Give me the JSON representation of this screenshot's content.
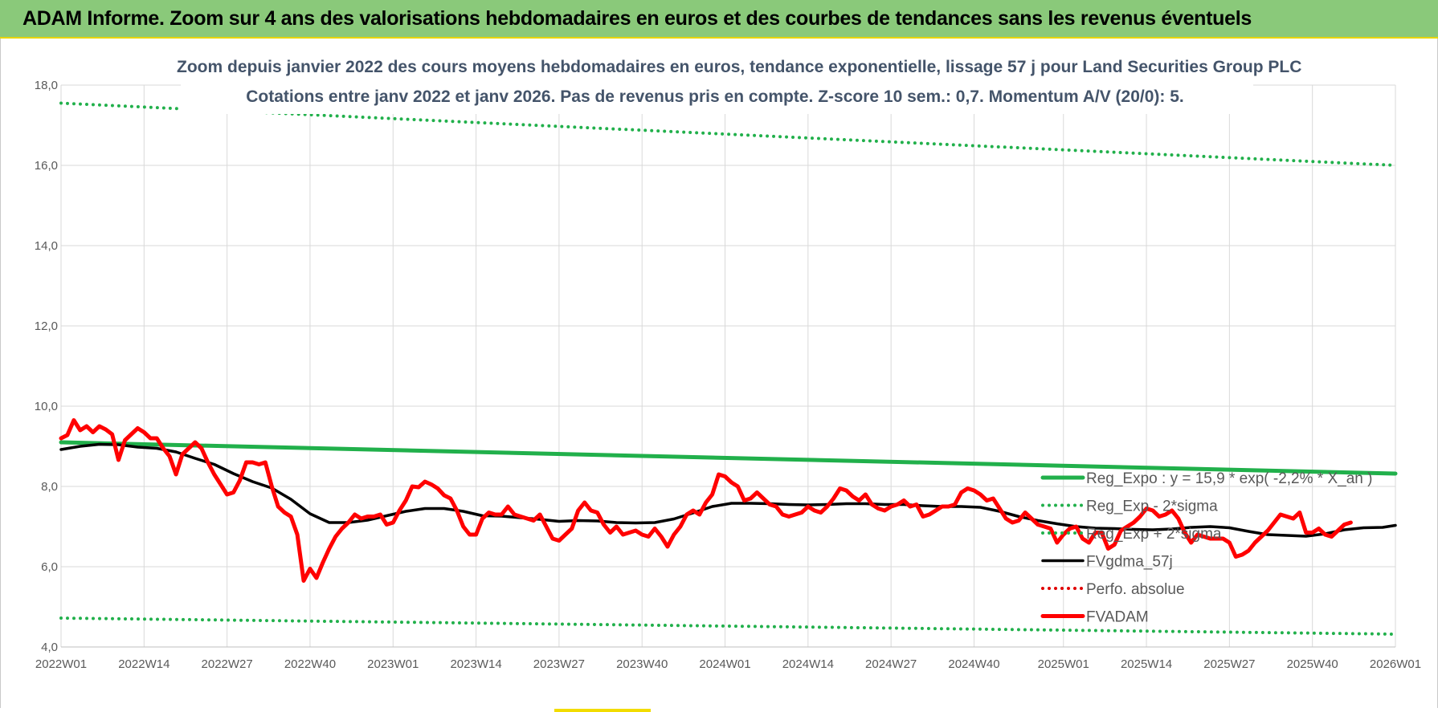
{
  "header": {
    "title": "ADAM Informe. Zoom sur 4 ans des valorisations hebdomadaires en euros et des courbes de tendances sans les revenus éventuels"
  },
  "chart_data": {
    "type": "line",
    "title": "Zoom depuis janvier 2022 des cours moyens hebdomadaires en euros, tendance exponentielle, lissage 57 j pour Land Securities Group PLC",
    "subtitle": "Cotations entre janv 2022 et janv 2026. Pas de revenus pris en compte. Z-score 10 sem.: 0,7. Momentum A/V (20/0): 5.",
    "xlabel": "",
    "ylabel": "",
    "ylim": [
      4,
      18
    ],
    "yticks": [
      "4,0",
      "6,0",
      "8,0",
      "10,0",
      "12,0",
      "14,0",
      "16,0",
      "18,0"
    ],
    "yticks_values": [
      4,
      6,
      8,
      10,
      12,
      14,
      16,
      18
    ],
    "x_start_week": 0,
    "x_end_week": 209,
    "xticks": [
      {
        "label": "2022W01",
        "week": 0
      },
      {
        "label": "2022W14",
        "week": 13
      },
      {
        "label": "2022W27",
        "week": 26
      },
      {
        "label": "2022W40",
        "week": 39
      },
      {
        "label": "2023W01",
        "week": 52
      },
      {
        "label": "2023W14",
        "week": 65
      },
      {
        "label": "2023W27",
        "week": 78
      },
      {
        "label": "2023W40",
        "week": 91
      },
      {
        "label": "2024W01",
        "week": 104
      },
      {
        "label": "2024W14",
        "week": 117
      },
      {
        "label": "2024W27",
        "week": 130
      },
      {
        "label": "2024W40",
        "week": 143
      },
      {
        "label": "2025W01",
        "week": 157
      },
      {
        "label": "2025W14",
        "week": 170
      },
      {
        "label": "2025W27",
        "week": 183
      },
      {
        "label": "2025W40",
        "week": 196
      },
      {
        "label": "2026W01",
        "week": 209
      }
    ],
    "grid": true,
    "legend_position": "bottom-right",
    "series": [
      {
        "name": "Reg_Expo : y = 15,9 * exp( -2,2% * X_an )",
        "style": "solid-thick",
        "color": "#21b04b",
        "points": [
          [
            0,
            9.1
          ],
          [
            209,
            8.32
          ]
        ]
      },
      {
        "name": "Reg_Exp - 2*sigma",
        "style": "dotted",
        "color": "#21b04b",
        "points": [
          [
            0,
            4.72
          ],
          [
            209,
            4.32
          ]
        ]
      },
      {
        "name": "Reg_Exp + 2*sigma",
        "style": "dotted",
        "color": "#21b04b",
        "points": [
          [
            0,
            17.55
          ],
          [
            209,
            16.0
          ]
        ]
      },
      {
        "name": "FVgdma_57j",
        "style": "solid",
        "color": "#000000",
        "points": [
          [
            0,
            8.92
          ],
          [
            3,
            9.0
          ],
          [
            6,
            9.05
          ],
          [
            9,
            9.04
          ],
          [
            12,
            8.98
          ],
          [
            15,
            8.95
          ],
          [
            18,
            8.86
          ],
          [
            21,
            8.7
          ],
          [
            24,
            8.55
          ],
          [
            27,
            8.32
          ],
          [
            30,
            8.12
          ],
          [
            33,
            7.96
          ],
          [
            36,
            7.68
          ],
          [
            39,
            7.32
          ],
          [
            42,
            7.1
          ],
          [
            45,
            7.1
          ],
          [
            48,
            7.16
          ],
          [
            51,
            7.27
          ],
          [
            54,
            7.38
          ],
          [
            57,
            7.45
          ],
          [
            60,
            7.45
          ],
          [
            63,
            7.38
          ],
          [
            66,
            7.27
          ],
          [
            69,
            7.26
          ],
          [
            72,
            7.22
          ],
          [
            75,
            7.18
          ],
          [
            78,
            7.13
          ],
          [
            81,
            7.15
          ],
          [
            84,
            7.14
          ],
          [
            87,
            7.1
          ],
          [
            90,
            7.09
          ],
          [
            93,
            7.1
          ],
          [
            96,
            7.19
          ],
          [
            99,
            7.34
          ],
          [
            102,
            7.5
          ],
          [
            105,
            7.58
          ],
          [
            108,
            7.58
          ],
          [
            111,
            7.57
          ],
          [
            114,
            7.55
          ],
          [
            117,
            7.54
          ],
          [
            120,
            7.55
          ],
          [
            123,
            7.57
          ],
          [
            126,
            7.57
          ],
          [
            129,
            7.55
          ],
          [
            132,
            7.55
          ],
          [
            135,
            7.52
          ],
          [
            138,
            7.5
          ],
          [
            141,
            7.5
          ],
          [
            144,
            7.48
          ],
          [
            147,
            7.38
          ],
          [
            150,
            7.25
          ],
          [
            153,
            7.15
          ],
          [
            156,
            7.07
          ],
          [
            159,
            7.0
          ],
          [
            162,
            6.96
          ],
          [
            165,
            6.95
          ],
          [
            168,
            6.93
          ],
          [
            171,
            6.92
          ],
          [
            174,
            6.94
          ],
          [
            177,
            6.98
          ],
          [
            180,
            7.0
          ],
          [
            183,
            6.97
          ],
          [
            186,
            6.88
          ],
          [
            189,
            6.8
          ],
          [
            192,
            6.78
          ],
          [
            195,
            6.76
          ],
          [
            198,
            6.82
          ],
          [
            201,
            6.92
          ],
          [
            204,
            6.97
          ],
          [
            207,
            6.98
          ],
          [
            209,
            7.03
          ]
        ]
      },
      {
        "name": "Perfo. absolue",
        "style": "dotted",
        "color": "#e00000",
        "points": []
      },
      {
        "name": "FVADAM",
        "style": "solid-thick",
        "color": "#ff0000",
        "points": [
          [
            0,
            9.2
          ],
          [
            1,
            9.28
          ],
          [
            2,
            9.65
          ],
          [
            3,
            9.4
          ],
          [
            4,
            9.5
          ],
          [
            5,
            9.35
          ],
          [
            6,
            9.5
          ],
          [
            7,
            9.42
          ],
          [
            8,
            9.3
          ],
          [
            9,
            8.66
          ],
          [
            10,
            9.15
          ],
          [
            11,
            9.3
          ],
          [
            12,
            9.45
          ],
          [
            13,
            9.35
          ],
          [
            14,
            9.2
          ],
          [
            15,
            9.2
          ],
          [
            16,
            8.95
          ],
          [
            17,
            8.75
          ],
          [
            18,
            8.3
          ],
          [
            19,
            8.8
          ],
          [
            20,
            8.95
          ],
          [
            21,
            9.1
          ],
          [
            22,
            8.95
          ],
          [
            23,
            8.6
          ],
          [
            24,
            8.3
          ],
          [
            25,
            8.05
          ],
          [
            26,
            7.8
          ],
          [
            27,
            7.85
          ],
          [
            28,
            8.15
          ],
          [
            29,
            8.6
          ],
          [
            30,
            8.6
          ],
          [
            31,
            8.55
          ],
          [
            32,
            8.6
          ],
          [
            33,
            8.0
          ],
          [
            34,
            7.5
          ],
          [
            35,
            7.35
          ],
          [
            36,
            7.25
          ],
          [
            37,
            6.8
          ],
          [
            38,
            5.65
          ],
          [
            39,
            5.95
          ],
          [
            40,
            5.72
          ],
          [
            41,
            6.1
          ],
          [
            42,
            6.45
          ],
          [
            43,
            6.75
          ],
          [
            44,
            6.95
          ],
          [
            45,
            7.1
          ],
          [
            46,
            7.3
          ],
          [
            47,
            7.2
          ],
          [
            48,
            7.25
          ],
          [
            49,
            7.25
          ],
          [
            50,
            7.3
          ],
          [
            51,
            7.05
          ],
          [
            52,
            7.1
          ],
          [
            53,
            7.4
          ],
          [
            54,
            7.65
          ],
          [
            55,
            8.0
          ],
          [
            56,
            7.98
          ],
          [
            57,
            8.12
          ],
          [
            58,
            8.05
          ],
          [
            59,
            7.95
          ],
          [
            60,
            7.78
          ],
          [
            61,
            7.7
          ],
          [
            62,
            7.4
          ],
          [
            63,
            7.0
          ],
          [
            64,
            6.8
          ],
          [
            65,
            6.8
          ],
          [
            66,
            7.2
          ],
          [
            67,
            7.35
          ],
          [
            68,
            7.3
          ],
          [
            69,
            7.3
          ],
          [
            70,
            7.5
          ],
          [
            71,
            7.3
          ],
          [
            72,
            7.25
          ],
          [
            73,
            7.2
          ],
          [
            74,
            7.15
          ],
          [
            75,
            7.3
          ],
          [
            76,
            7.0
          ],
          [
            77,
            6.7
          ],
          [
            78,
            6.65
          ],
          [
            79,
            6.8
          ],
          [
            80,
            6.95
          ],
          [
            81,
            7.4
          ],
          [
            82,
            7.6
          ],
          [
            83,
            7.4
          ],
          [
            84,
            7.35
          ],
          [
            85,
            7.05
          ],
          [
            86,
            6.85
          ],
          [
            87,
            7.0
          ],
          [
            88,
            6.8
          ],
          [
            89,
            6.85
          ],
          [
            90,
            6.9
          ],
          [
            91,
            6.8
          ],
          [
            92,
            6.75
          ],
          [
            93,
            6.95
          ],
          [
            94,
            6.75
          ],
          [
            95,
            6.5
          ],
          [
            96,
            6.8
          ],
          [
            97,
            7.0
          ],
          [
            98,
            7.3
          ],
          [
            99,
            7.4
          ],
          [
            100,
            7.3
          ],
          [
            101,
            7.6
          ],
          [
            102,
            7.8
          ],
          [
            103,
            8.3
          ],
          [
            104,
            8.25
          ],
          [
            105,
            8.1
          ],
          [
            106,
            8.0
          ],
          [
            107,
            7.65
          ],
          [
            108,
            7.7
          ],
          [
            109,
            7.85
          ],
          [
            110,
            7.7
          ],
          [
            111,
            7.55
          ],
          [
            112,
            7.5
          ],
          [
            113,
            7.3
          ],
          [
            114,
            7.25
          ],
          [
            115,
            7.3
          ],
          [
            116,
            7.35
          ],
          [
            117,
            7.5
          ],
          [
            118,
            7.4
          ],
          [
            119,
            7.35
          ],
          [
            120,
            7.5
          ],
          [
            121,
            7.7
          ],
          [
            122,
            7.95
          ],
          [
            123,
            7.9
          ],
          [
            124,
            7.75
          ],
          [
            125,
            7.65
          ],
          [
            126,
            7.8
          ],
          [
            127,
            7.55
          ],
          [
            128,
            7.45
          ],
          [
            129,
            7.4
          ],
          [
            130,
            7.5
          ],
          [
            131,
            7.55
          ],
          [
            132,
            7.65
          ],
          [
            133,
            7.5
          ],
          [
            134,
            7.55
          ],
          [
            135,
            7.25
          ],
          [
            136,
            7.3
          ],
          [
            137,
            7.4
          ],
          [
            138,
            7.5
          ],
          [
            139,
            7.5
          ],
          [
            140,
            7.55
          ],
          [
            141,
            7.85
          ],
          [
            142,
            7.95
          ],
          [
            143,
            7.9
          ],
          [
            144,
            7.8
          ],
          [
            145,
            7.65
          ],
          [
            146,
            7.7
          ],
          [
            147,
            7.45
          ],
          [
            148,
            7.2
          ],
          [
            149,
            7.1
          ],
          [
            150,
            7.15
          ],
          [
            151,
            7.35
          ],
          [
            152,
            7.2
          ],
          [
            153,
            7.05
          ],
          [
            154,
            7.0
          ],
          [
            155,
            6.95
          ],
          [
            156,
            6.6
          ],
          [
            157,
            6.8
          ],
          [
            158,
            6.95
          ],
          [
            159,
            7.0
          ],
          [
            160,
            6.7
          ],
          [
            161,
            6.6
          ],
          [
            162,
            6.85
          ],
          [
            163,
            6.85
          ],
          [
            164,
            6.45
          ],
          [
            165,
            6.55
          ],
          [
            166,
            6.9
          ],
          [
            167,
            7.0
          ],
          [
            168,
            7.1
          ],
          [
            169,
            7.25
          ],
          [
            170,
            7.45
          ],
          [
            171,
            7.4
          ],
          [
            172,
            7.25
          ],
          [
            173,
            7.3
          ],
          [
            174,
            7.4
          ],
          [
            175,
            7.2
          ],
          [
            176,
            6.85
          ],
          [
            177,
            6.6
          ],
          [
            178,
            6.8
          ],
          [
            179,
            6.75
          ],
          [
            180,
            6.7
          ],
          [
            181,
            6.7
          ],
          [
            182,
            6.7
          ],
          [
            183,
            6.6
          ],
          [
            184,
            6.25
          ],
          [
            185,
            6.3
          ],
          [
            186,
            6.4
          ],
          [
            187,
            6.6
          ],
          [
            188,
            6.75
          ],
          [
            189,
            6.9
          ],
          [
            190,
            7.1
          ],
          [
            191,
            7.3
          ],
          [
            192,
            7.25
          ],
          [
            193,
            7.2
          ],
          [
            194,
            7.35
          ],
          [
            195,
            6.85
          ],
          [
            196,
            6.85
          ],
          [
            197,
            6.95
          ],
          [
            198,
            6.8
          ],
          [
            199,
            6.75
          ],
          [
            200,
            6.9
          ],
          [
            201,
            7.05
          ],
          [
            202,
            7.1
          ]
        ]
      }
    ]
  }
}
